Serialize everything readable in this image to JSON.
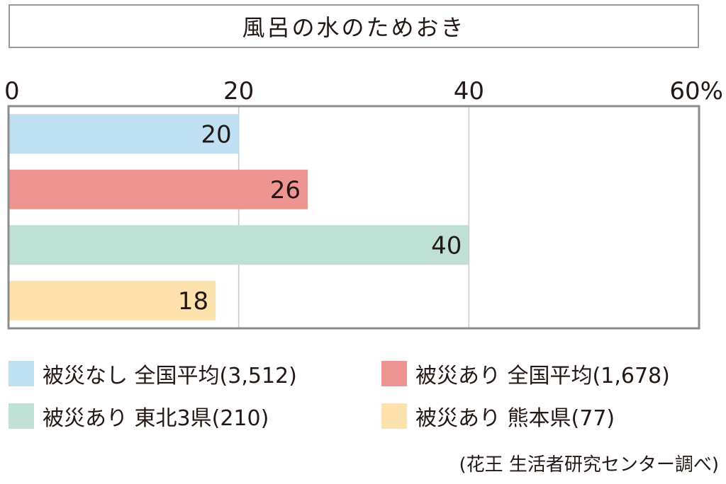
{
  "chart_data": {
    "type": "bar",
    "orientation": "horizontal",
    "title": "風呂の水のためおき",
    "x_ticks": [
      "0",
      "20",
      "40",
      "60%"
    ],
    "xlim": [
      0,
      60
    ],
    "grid": true,
    "categories": [
      "被災なし 全国平均(3,512)",
      "被災あり 全国平均(1,678)",
      "被災あり 東北3県(210)",
      "被災あり 熊本県(77)"
    ],
    "values": [
      20,
      26,
      40,
      18
    ],
    "data_labels": [
      "20",
      "26",
      "40",
      "18"
    ],
    "colors": [
      "#bfe0f2",
      "#ee9592",
      "#bfe1d5",
      "#fde2ad"
    ],
    "legend_placement": "bottom",
    "source": "(花王 生活者研究センター調べ)"
  },
  "legend": [
    {
      "label": "被災なし 全国平均(3,512)",
      "color": "#bfe0f2"
    },
    {
      "label": "被災あり 全国平均(1,678)",
      "color": "#ee9592"
    },
    {
      "label": "被災あり 東北3県(210)",
      "color": "#bfe1d5"
    },
    {
      "label": "被災あり 熊本県(77)",
      "color": "#fde2ad"
    }
  ]
}
